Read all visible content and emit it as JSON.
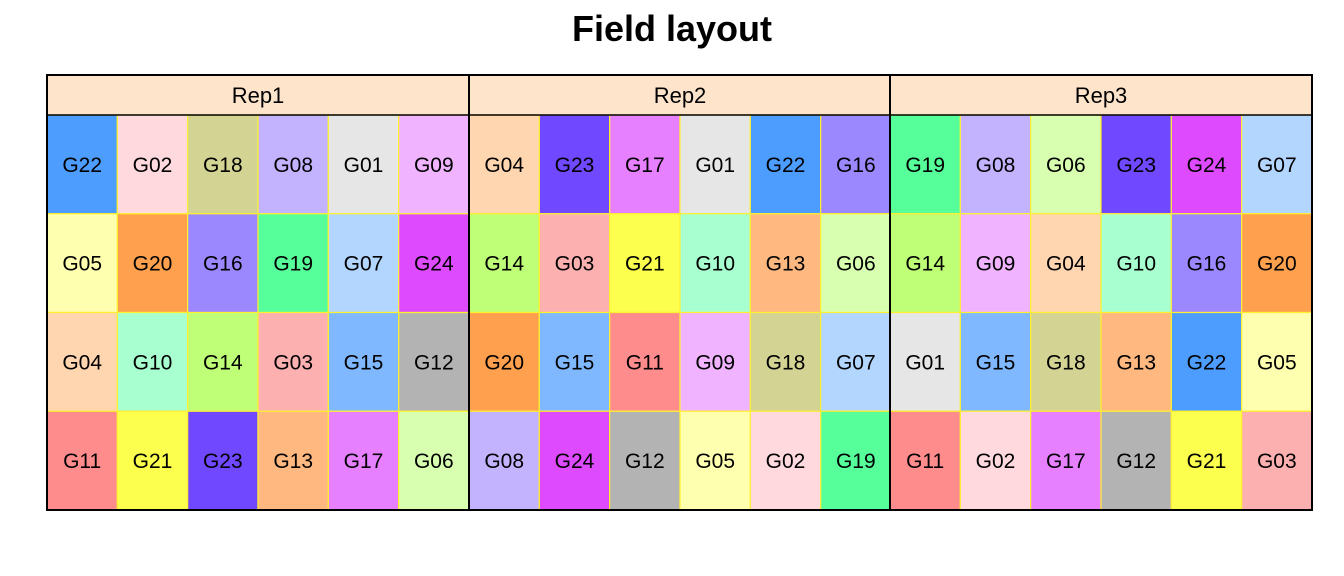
{
  "chart_data": {
    "type": "heatmap",
    "title": "Field layout",
    "facet_strip_color": "#FFE4CC",
    "cell_border_color": "#FFF030",
    "panels": [
      {
        "label": "Rep1",
        "rows": [
          [
            "G22",
            "G02",
            "G18",
            "G08",
            "G01",
            "G09"
          ],
          [
            "G05",
            "G20",
            "G16",
            "G19",
            "G07",
            "G24"
          ],
          [
            "G04",
            "G10",
            "G14",
            "G03",
            "G15",
            "G12"
          ],
          [
            "G11",
            "G21",
            "G23",
            "G13",
            "G17",
            "G06"
          ]
        ]
      },
      {
        "label": "Rep2",
        "rows": [
          [
            "G04",
            "G23",
            "G17",
            "G01",
            "G22",
            "G16"
          ],
          [
            "G14",
            "G03",
            "G21",
            "G10",
            "G13",
            "G06"
          ],
          [
            "G20",
            "G15",
            "G11",
            "G09",
            "G18",
            "G07"
          ],
          [
            "G08",
            "G24",
            "G12",
            "G05",
            "G02",
            "G19"
          ]
        ]
      },
      {
        "label": "Rep3",
        "rows": [
          [
            "G19",
            "G08",
            "G06",
            "G23",
            "G24",
            "G07"
          ],
          [
            "G14",
            "G09",
            "G04",
            "G10",
            "G16",
            "G20"
          ],
          [
            "G01",
            "G15",
            "G18",
            "G13",
            "G22",
            "G05"
          ],
          [
            "G11",
            "G02",
            "G17",
            "G12",
            "G21",
            "G03"
          ]
        ]
      }
    ],
    "genotype_colors": {
      "G01": "#E6E6E6",
      "G02": "#FFD9DE",
      "G03": "#FDB0B0",
      "G04": "#FFD6B0",
      "G05": "#FFFFB0",
      "G06": "#D8FFB0",
      "G07": "#B3D6FF",
      "G08": "#C3B3FF",
      "G09": "#EFB3FF",
      "G10": "#A8FFCF",
      "G11": "#FF8C8C",
      "G12": "#B3B3B3",
      "G13": "#FFB880",
      "G14": "#BFFF78",
      "G15": "#80B8FF",
      "G16": "#9B88FF",
      "G17": "#E680FF",
      "G18": "#D3D394",
      "G19": "#57FF9A",
      "G20": "#FFA04E",
      "G21": "#FCFF4D",
      "G22": "#4D9CFF",
      "G23": "#7048FF",
      "G24": "#DE4BFF"
    }
  }
}
